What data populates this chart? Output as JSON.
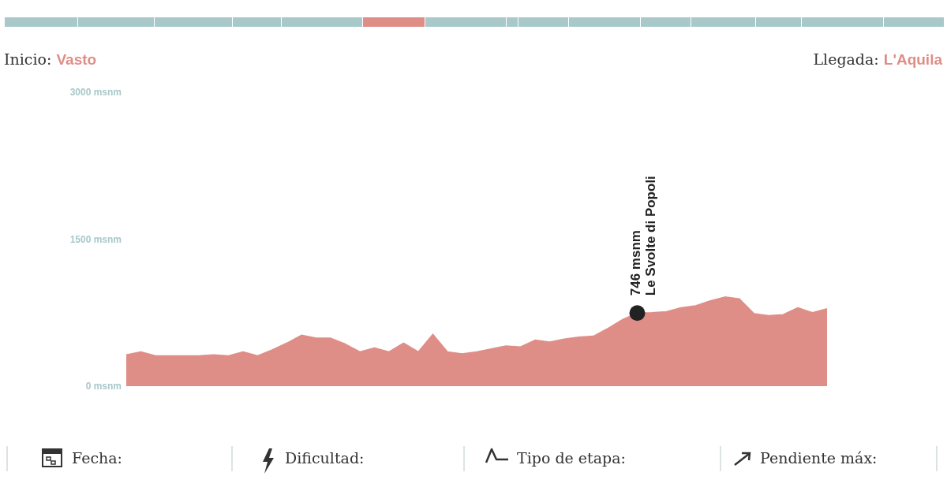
{
  "chart_data": {
    "type": "area",
    "categories": [
      null,
      null,
      null,
      null,
      null,
      null,
      null,
      null,
      null,
      null,
      null,
      null,
      null,
      null,
      null,
      null,
      null,
      null,
      null,
      null,
      null,
      null,
      null,
      null,
      null,
      null,
      null,
      null,
      null,
      null,
      null,
      null,
      null,
      null,
      null,
      null,
      null,
      null,
      null,
      null,
      null,
      null,
      null,
      null,
      null,
      null,
      null,
      null,
      null
    ],
    "series": [
      {
        "color": "#df8e87",
        "values": [
          320,
          350,
          310,
          310,
          310,
          310,
          320,
          310,
          350,
          310,
          370,
          440,
          520,
          490,
          490,
          430,
          350,
          390,
          350,
          440,
          350,
          530,
          350,
          330,
          350,
          380,
          410,
          400,
          470,
          450,
          480,
          500,
          510,
          590,
          680,
          746,
          750,
          760,
          800,
          820,
          870,
          910,
          890,
          740,
          720,
          730,
          800,
          750,
          790
        ]
      }
    ],
    "ylim": [
      0,
      3000
    ],
    "yticks": [
      {
        "value": 0,
        "label": "0 msnm"
      },
      {
        "value": 1500,
        "label": "1500 msnm"
      },
      {
        "value": 3000,
        "label": "3000 msnm"
      }
    ],
    "tick_labels": "y",
    "annotations": [
      {
        "text": "746  msnm",
        "y": 746
      },
      {
        "text": "Le Svolte di Popoli",
        "y": 746
      },
      "Inicio:",
      "Vasto",
      "Llegada:",
      "L'Aquila",
      "Fecha:",
      "Dificultad:",
      "Tipo de etapa:",
      "Pendiente máx:"
    ]
  }
}
